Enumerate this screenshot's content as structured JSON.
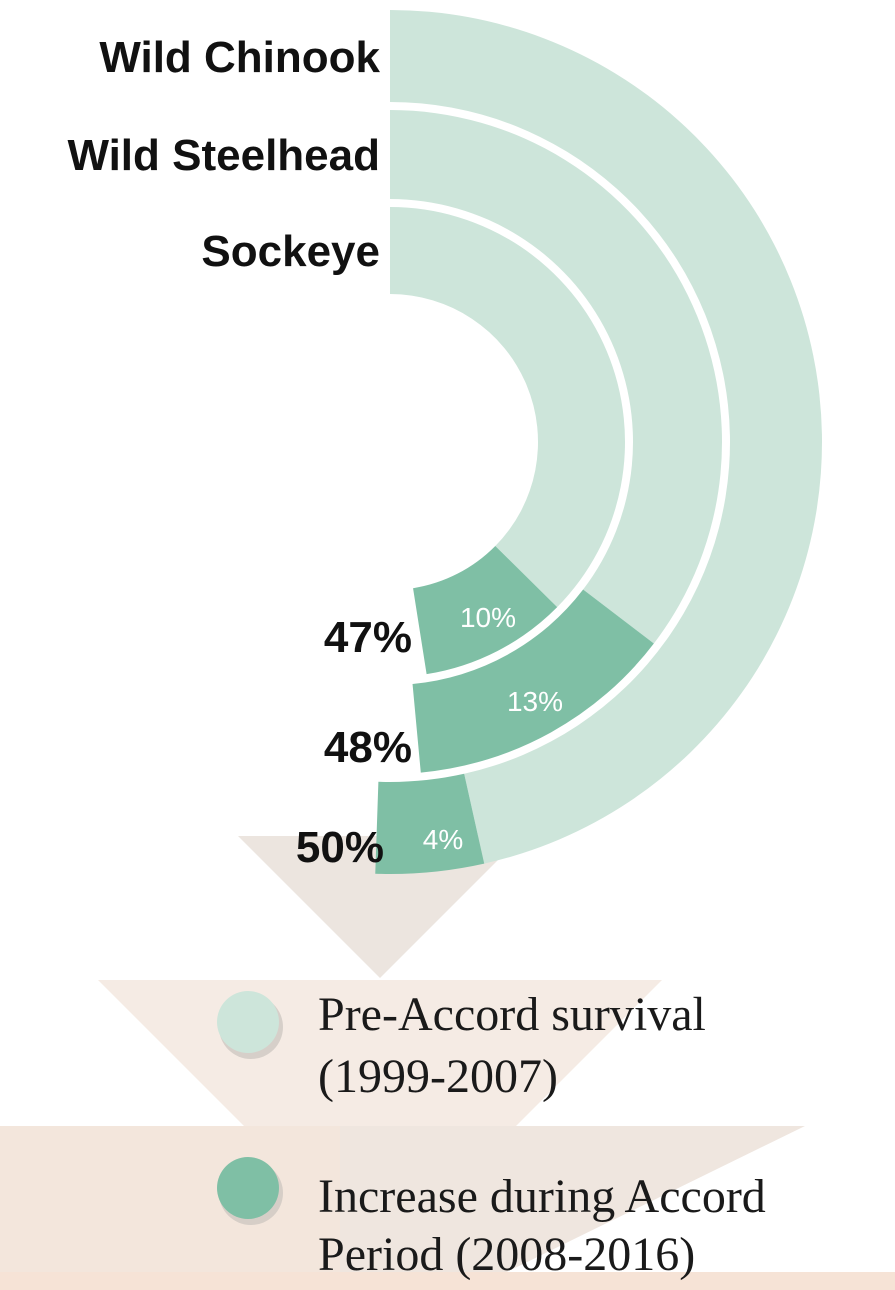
{
  "chart_data": {
    "type": "radial-bar",
    "title": "",
    "series": [
      {
        "name": "Pre-Accord survival (1999-2007)",
        "color": "#cde5da"
      },
      {
        "name": "Increase during Accord Period (2008-2016)",
        "color": "#7fbfa5"
      }
    ],
    "rings": [
      {
        "species": "Wild Chinook",
        "pre_accord": 46,
        "increase": 4,
        "total": 50,
        "total_label": "50%",
        "increase_label": "4%"
      },
      {
        "species": "Wild Steelhead",
        "pre_accord": 35,
        "increase": 13,
        "total": 48,
        "total_label": "48%",
        "increase_label": "13%"
      },
      {
        "species": "Sockeye",
        "pre_accord": 37,
        "increase": 10,
        "total": 47,
        "total_label": "47%",
        "increase_label": "10%"
      }
    ],
    "scale_max": 100
  },
  "legend": {
    "pre": {
      "line1": "Pre-Accord survival",
      "line2": "(1999-2007)",
      "color": "#cde5da"
    },
    "increase": {
      "line1": "Increase during Accord",
      "line2": "Period (2008-2016)",
      "color": "#7fbfa5"
    }
  },
  "background": {
    "triangle_tan": "#ece5df",
    "triangle_peach": "#f7e8df"
  }
}
